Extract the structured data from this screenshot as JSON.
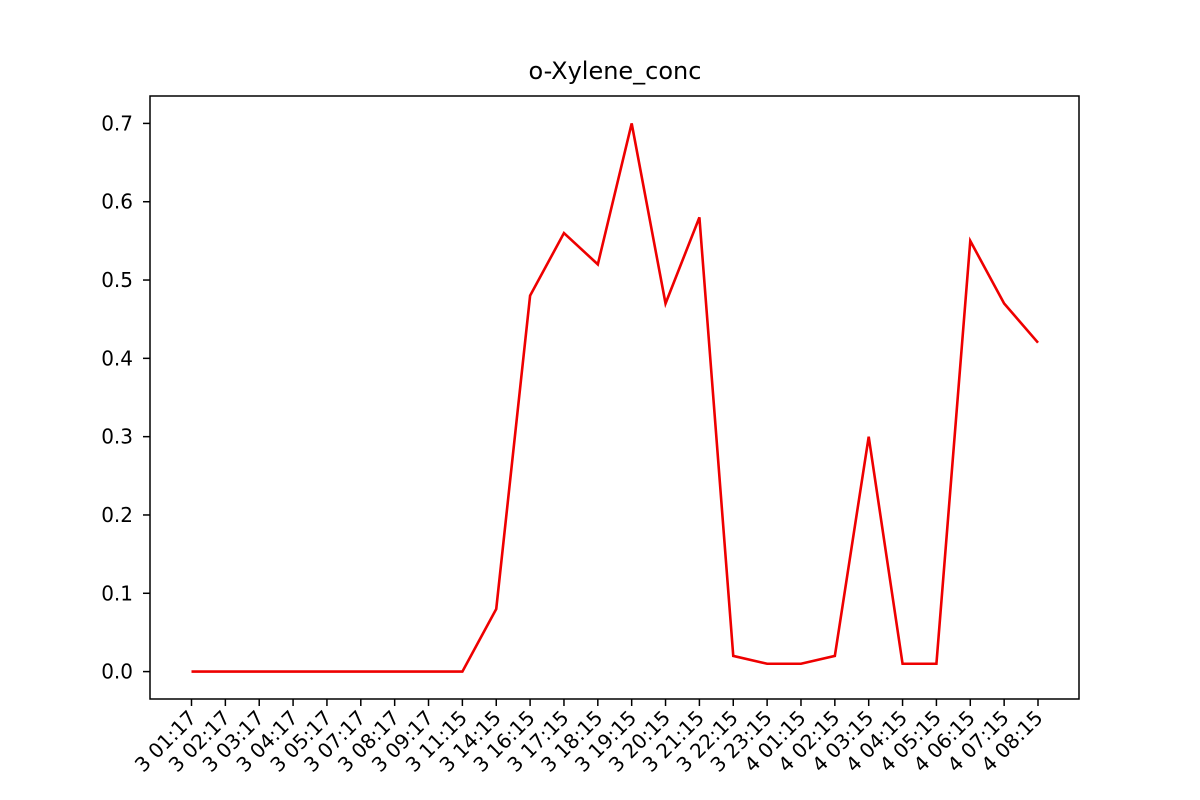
{
  "chart_data": {
    "type": "line",
    "title": "o-Xylene_conc",
    "xlabel": "",
    "ylabel": "",
    "ylim": [
      -0.035,
      0.735
    ],
    "y_ticks": [
      "0.0",
      "0.1",
      "0.2",
      "0.3",
      "0.4",
      "0.5",
      "0.6",
      "0.7"
    ],
    "categories": [
      "3 01:17",
      "3 02:17",
      "3 03:17",
      "3 04:17",
      "3 05:17",
      "3 07:17",
      "3 08:17",
      "3 09:17",
      "3 11:15",
      "3 14:15",
      "3 16:15",
      "3 17:15",
      "3 18:15",
      "3 19:15",
      "3 20:15",
      "3 21:15",
      "3 22:15",
      "3 23:15",
      "4 01:15",
      "4 02:15",
      "4 03:15",
      "4 04:15",
      "4 05:15",
      "4 06:15",
      "4 07:15",
      "4 08:15"
    ],
    "values": [
      0,
      0,
      0,
      0,
      0,
      0,
      0,
      0,
      0,
      0.08,
      0.48,
      0.56,
      0.52,
      0.7,
      0.47,
      0.58,
      0.02,
      0.01,
      0.01,
      0.02,
      0.3,
      0.01,
      0.01,
      0.55,
      0.47,
      0.42
    ],
    "line_color": "#ee0000",
    "grid": false,
    "legend": "none"
  }
}
